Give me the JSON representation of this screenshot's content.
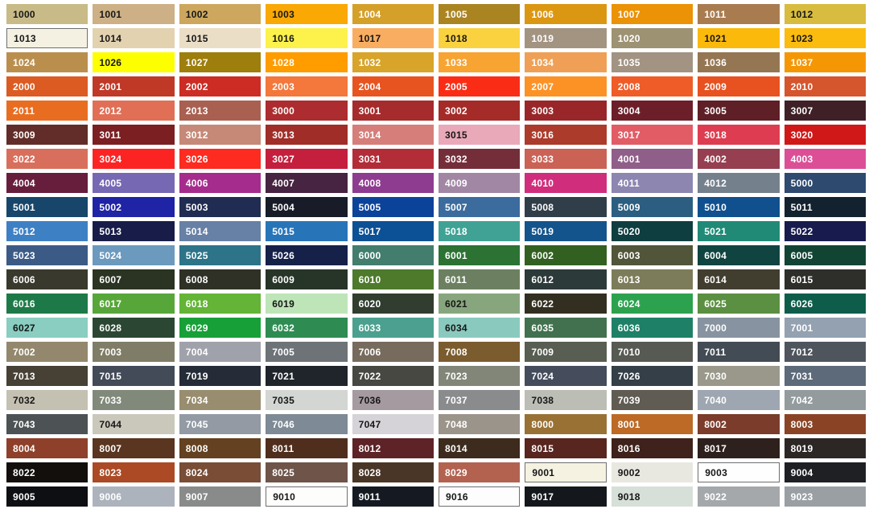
{
  "title": "RAL colour chart",
  "text_colors": {
    "b": "#161616",
    "w": "#ffffff"
  },
  "chart_data": {
    "type": "table",
    "title": "RAL classic colour chart",
    "columns": 10,
    "rows": 21,
    "legend_position": "none",
    "grid": "white gaps between swatches",
    "swatches": [
      {
        "code": "1000",
        "hex": "#C9BB88",
        "text": "b"
      },
      {
        "code": "1001",
        "hex": "#CDB086",
        "text": "b"
      },
      {
        "code": "1002",
        "hex": "#CDA75E",
        "text": "b"
      },
      {
        "code": "1003",
        "hex": "#F9A804",
        "text": "b"
      },
      {
        "code": "1004",
        "hex": "#D4A02A",
        "text": "w"
      },
      {
        "code": "1005",
        "hex": "#AB8422",
        "text": "w"
      },
      {
        "code": "1006",
        "hex": "#DC9712",
        "text": "w"
      },
      {
        "code": "1007",
        "hex": "#EB9206",
        "text": "w"
      },
      {
        "code": "1011",
        "hex": "#A97C50",
        "text": "w"
      },
      {
        "code": "1012",
        "hex": "#D8BC3F",
        "text": "b"
      },
      {
        "code": "1013",
        "hex": "#F5F1E2",
        "text": "b",
        "border": true
      },
      {
        "code": "1014",
        "hex": "#E2D2B0",
        "text": "b"
      },
      {
        "code": "1015",
        "hex": "#EBDEC6",
        "text": "b"
      },
      {
        "code": "1016",
        "hex": "#FCF24B",
        "text": "b"
      },
      {
        "code": "1017",
        "hex": "#F9AD61",
        "text": "b"
      },
      {
        "code": "1018",
        "hex": "#FAD240",
        "text": "b"
      },
      {
        "code": "1019",
        "hex": "#A39482",
        "text": "w"
      },
      {
        "code": "1020",
        "hex": "#9D9272",
        "text": "w"
      },
      {
        "code": "1021",
        "hex": "#FBBA0B",
        "text": "b"
      },
      {
        "code": "1023",
        "hex": "#FBBC0F",
        "text": "b"
      },
      {
        "code": "1024",
        "hex": "#BA8F4E",
        "text": "w"
      },
      {
        "code": "1026",
        "hex": "#FDFE00",
        "text": "b"
      },
      {
        "code": "1027",
        "hex": "#9E7E0C",
        "text": "w"
      },
      {
        "code": "1028",
        "hex": "#FE9C00",
        "text": "w"
      },
      {
        "code": "1032",
        "hex": "#D8A429",
        "text": "w"
      },
      {
        "code": "1033",
        "hex": "#F7A433",
        "text": "w"
      },
      {
        "code": "1034",
        "hex": "#EFA056",
        "text": "w"
      },
      {
        "code": "1035",
        "hex": "#A29383",
        "text": "w"
      },
      {
        "code": "1036",
        "hex": "#957653",
        "text": "w"
      },
      {
        "code": "1037",
        "hex": "#F59704",
        "text": "w"
      },
      {
        "code": "2000",
        "hex": "#DC5B22",
        "text": "w"
      },
      {
        "code": "2001",
        "hex": "#C03826",
        "text": "w"
      },
      {
        "code": "2002",
        "hex": "#CC2C24",
        "text": "w"
      },
      {
        "code": "2003",
        "hex": "#F4773B",
        "text": "w"
      },
      {
        "code": "2004",
        "hex": "#E75420",
        "text": "w"
      },
      {
        "code": "2005",
        "hex": "#FB2C16",
        "text": "w"
      },
      {
        "code": "2007",
        "hex": "#FC9226",
        "text": "w"
      },
      {
        "code": "2008",
        "hex": "#EF5C28",
        "text": "w"
      },
      {
        "code": "2009",
        "hex": "#E85120",
        "text": "w"
      },
      {
        "code": "2010",
        "hex": "#D5552C",
        "text": "w"
      },
      {
        "code": "2011",
        "hex": "#E96D20",
        "text": "w"
      },
      {
        "code": "2012",
        "hex": "#E06F56",
        "text": "w"
      },
      {
        "code": "2013",
        "hex": "#A96050",
        "text": "w"
      },
      {
        "code": "3000",
        "hex": "#AC2C2F",
        "text": "w"
      },
      {
        "code": "3001",
        "hex": "#A62B2C",
        "text": "w"
      },
      {
        "code": "3002",
        "hex": "#A42B28",
        "text": "w"
      },
      {
        "code": "3003",
        "hex": "#992729",
        "text": "w"
      },
      {
        "code": "3004",
        "hex": "#6D1F29",
        "text": "w"
      },
      {
        "code": "3005",
        "hex": "#5E1F26",
        "text": "w"
      },
      {
        "code": "3007",
        "hex": "#3F2026",
        "text": "w"
      },
      {
        "code": "3009",
        "hex": "#622D28",
        "text": "w"
      },
      {
        "code": "3011",
        "hex": "#7B1F22",
        "text": "w"
      },
      {
        "code": "3012",
        "hex": "#C68977",
        "text": "w"
      },
      {
        "code": "3013",
        "hex": "#A02D28",
        "text": "w"
      },
      {
        "code": "3014",
        "hex": "#D67E79",
        "text": "w"
      },
      {
        "code": "3015",
        "hex": "#E9A9B9",
        "text": "b"
      },
      {
        "code": "3016",
        "hex": "#AC3B2B",
        "text": "w"
      },
      {
        "code": "3017",
        "hex": "#E25C66",
        "text": "w"
      },
      {
        "code": "3018",
        "hex": "#DE3C50",
        "text": "w"
      },
      {
        "code": "3020",
        "hex": "#D01818",
        "text": "w"
      },
      {
        "code": "3022",
        "hex": "#D86F5C",
        "text": "w"
      },
      {
        "code": "3024",
        "hex": "#FC2423",
        "text": "w"
      },
      {
        "code": "3026",
        "hex": "#FD2B20",
        "text": "w"
      },
      {
        "code": "3027",
        "hex": "#C41F3D",
        "text": "w"
      },
      {
        "code": "3031",
        "hex": "#B22D38",
        "text": "w"
      },
      {
        "code": "3032",
        "hex": "#742E3A",
        "text": "w"
      },
      {
        "code": "3033",
        "hex": "#CA6256",
        "text": "w"
      },
      {
        "code": "4001",
        "hex": "#8F5E89",
        "text": "w"
      },
      {
        "code": "4002",
        "hex": "#953F50",
        "text": "w"
      },
      {
        "code": "4003",
        "hex": "#DC4F97",
        "text": "w"
      },
      {
        "code": "4004",
        "hex": "#671E3C",
        "text": "w"
      },
      {
        "code": "4005",
        "hex": "#7768B4",
        "text": "w"
      },
      {
        "code": "4006",
        "hex": "#A52C8D",
        "text": "w"
      },
      {
        "code": "4007",
        "hex": "#472441",
        "text": "w"
      },
      {
        "code": "4008",
        "hex": "#8E3C90",
        "text": "w"
      },
      {
        "code": "4009",
        "hex": "#A287A5",
        "text": "w"
      },
      {
        "code": "4010",
        "hex": "#D02E7C",
        "text": "w"
      },
      {
        "code": "4011",
        "hex": "#8C86B1",
        "text": "w"
      },
      {
        "code": "4012",
        "hex": "#75808D",
        "text": "w"
      },
      {
        "code": "5000",
        "hex": "#2E4A6F",
        "text": "w"
      },
      {
        "code": "5001",
        "hex": "#17466A",
        "text": "w"
      },
      {
        "code": "5002",
        "hex": "#1F23A5",
        "text": "w"
      },
      {
        "code": "5003",
        "hex": "#202C52",
        "text": "w"
      },
      {
        "code": "5004",
        "hex": "#171C28",
        "text": "w"
      },
      {
        "code": "5005",
        "hex": "#0C439A",
        "text": "w"
      },
      {
        "code": "5007",
        "hex": "#3C6C9E",
        "text": "w"
      },
      {
        "code": "5008",
        "hex": "#303E49",
        "text": "w"
      },
      {
        "code": "5009",
        "hex": "#2B5E80",
        "text": "w"
      },
      {
        "code": "5010",
        "hex": "#10508F",
        "text": "w"
      },
      {
        "code": "5011",
        "hex": "#13222F",
        "text": "w"
      },
      {
        "code": "5012",
        "hex": "#3E80C4",
        "text": "w"
      },
      {
        "code": "5013",
        "hex": "#171D48",
        "text": "w"
      },
      {
        "code": "5014",
        "hex": "#6780A5",
        "text": "w"
      },
      {
        "code": "5015",
        "hex": "#2874B8",
        "text": "w"
      },
      {
        "code": "5017",
        "hex": "#0C5095",
        "text": "w"
      },
      {
        "code": "5018",
        "hex": "#3FA295",
        "text": "w"
      },
      {
        "code": "5019",
        "hex": "#14548C",
        "text": "w"
      },
      {
        "code": "5020",
        "hex": "#0F3E40",
        "text": "w"
      },
      {
        "code": "5021",
        "hex": "#208A77",
        "text": "w"
      },
      {
        "code": "5022",
        "hex": "#181B4D",
        "text": "w"
      },
      {
        "code": "5023",
        "hex": "#3B5B86",
        "text": "w"
      },
      {
        "code": "5024",
        "hex": "#6C99BE",
        "text": "w"
      },
      {
        "code": "5025",
        "hex": "#2D7489",
        "text": "w"
      },
      {
        "code": "5026",
        "hex": "#16214A",
        "text": "w"
      },
      {
        "code": "6000",
        "hex": "#427D6E",
        "text": "w"
      },
      {
        "code": "6001",
        "hex": "#2B7233",
        "text": "w"
      },
      {
        "code": "6002",
        "hex": "#326020",
        "text": "w"
      },
      {
        "code": "6003",
        "hex": "#51553A",
        "text": "w"
      },
      {
        "code": "6004",
        "hex": "#104441",
        "text": "w"
      },
      {
        "code": "6005",
        "hex": "#124434",
        "text": "w"
      },
      {
        "code": "6006",
        "hex": "#3A392E",
        "text": "w"
      },
      {
        "code": "6007",
        "hex": "#2B3322",
        "text": "w"
      },
      {
        "code": "6008",
        "hex": "#2F3126",
        "text": "w"
      },
      {
        "code": "6009",
        "hex": "#273428",
        "text": "w"
      },
      {
        "code": "6010",
        "hex": "#4D7A2B",
        "text": "w"
      },
      {
        "code": "6011",
        "hex": "#6C8061",
        "text": "w"
      },
      {
        "code": "6012",
        "hex": "#2C3A39",
        "text": "w"
      },
      {
        "code": "6013",
        "hex": "#7D7C5A",
        "text": "w"
      },
      {
        "code": "6014",
        "hex": "#413E30",
        "text": "w"
      },
      {
        "code": "6015",
        "hex": "#2E2F2A",
        "text": "w"
      },
      {
        "code": "6016",
        "hex": "#1D7A48",
        "text": "w"
      },
      {
        "code": "6017",
        "hex": "#57A639",
        "text": "w"
      },
      {
        "code": "6018",
        "hex": "#63B437",
        "text": "w"
      },
      {
        "code": "6019",
        "hex": "#BEE5B8",
        "text": "b"
      },
      {
        "code": "6020",
        "hex": "#303D2F",
        "text": "w"
      },
      {
        "code": "6021",
        "hex": "#88A67E",
        "text": "b"
      },
      {
        "code": "6022",
        "hex": "#332F20",
        "text": "w"
      },
      {
        "code": "6024",
        "hex": "#2DA24E",
        "text": "w"
      },
      {
        "code": "6025",
        "hex": "#5B8F41",
        "text": "w"
      },
      {
        "code": "6026",
        "hex": "#0E5D4B",
        "text": "w"
      },
      {
        "code": "6027",
        "hex": "#89CEC1",
        "text": "b"
      },
      {
        "code": "6028",
        "hex": "#2B4733",
        "text": "w"
      },
      {
        "code": "6029",
        "hex": "#17A038",
        "text": "w"
      },
      {
        "code": "6032",
        "hex": "#2E8C52",
        "text": "w"
      },
      {
        "code": "6033",
        "hex": "#4BA08F",
        "text": "w"
      },
      {
        "code": "6034",
        "hex": "#8ACABE",
        "text": "b"
      },
      {
        "code": "6035",
        "hex": "#42714F",
        "text": "w"
      },
      {
        "code": "6036",
        "hex": "#1D8067",
        "text": "w"
      },
      {
        "code": "7000",
        "hex": "#8793A0",
        "text": "w"
      },
      {
        "code": "7001",
        "hex": "#93A1B1",
        "text": "w"
      },
      {
        "code": "7002",
        "hex": "#93886D",
        "text": "w"
      },
      {
        "code": "7003",
        "hex": "#7F7D67",
        "text": "w"
      },
      {
        "code": "7004",
        "hex": "#A0A2AB",
        "text": "w"
      },
      {
        "code": "7005",
        "hex": "#6D7377",
        "text": "w"
      },
      {
        "code": "7006",
        "hex": "#776B5E",
        "text": "w"
      },
      {
        "code": "7008",
        "hex": "#7B5C2F",
        "text": "w"
      },
      {
        "code": "7009",
        "hex": "#585E52",
        "text": "w"
      },
      {
        "code": "7010",
        "hex": "#565A53",
        "text": "w"
      },
      {
        "code": "7011",
        "hex": "#434B54",
        "text": "w"
      },
      {
        "code": "7012",
        "hex": "#4E555D",
        "text": "w"
      },
      {
        "code": "7013",
        "hex": "#464134",
        "text": "w"
      },
      {
        "code": "7015",
        "hex": "#434A58",
        "text": "w"
      },
      {
        "code": "7019",
        "hex": "#262C37",
        "text": "w"
      },
      {
        "code": "7021",
        "hex": "#20252B",
        "text": "w"
      },
      {
        "code": "7022",
        "hex": "#474842",
        "text": "w"
      },
      {
        "code": "7023",
        "hex": "#828679",
        "text": "w"
      },
      {
        "code": "7024",
        "hex": "#454C5C",
        "text": "w"
      },
      {
        "code": "7026",
        "hex": "#343F47",
        "text": "w"
      },
      {
        "code": "7030",
        "hex": "#99988B",
        "text": "w"
      },
      {
        "code": "7031",
        "hex": "#5C6A79",
        "text": "w"
      },
      {
        "code": "7032",
        "hex": "#C5C1B2",
        "text": "b"
      },
      {
        "code": "7033",
        "hex": "#81897B",
        "text": "w"
      },
      {
        "code": "7034",
        "hex": "#988D6F",
        "text": "w"
      },
      {
        "code": "7035",
        "hex": "#D3D6D2",
        "text": "b"
      },
      {
        "code": "7036",
        "hex": "#A49AA0",
        "text": "b"
      },
      {
        "code": "7037",
        "hex": "#898B8D",
        "text": "w"
      },
      {
        "code": "7038",
        "hex": "#BCBEB6",
        "text": "b"
      },
      {
        "code": "7039",
        "hex": "#605C54",
        "text": "w"
      },
      {
        "code": "7040",
        "hex": "#9EA6B1",
        "text": "w"
      },
      {
        "code": "7042",
        "hex": "#939B9D",
        "text": "w"
      },
      {
        "code": "7043",
        "hex": "#4D5254",
        "text": "w"
      },
      {
        "code": "7044",
        "hex": "#CAC8BB",
        "text": "b"
      },
      {
        "code": "7045",
        "hex": "#939AA4",
        "text": "w"
      },
      {
        "code": "7046",
        "hex": "#7E8A95",
        "text": "w"
      },
      {
        "code": "7047",
        "hex": "#D5D3D7",
        "text": "b"
      },
      {
        "code": "7048",
        "hex": "#9B948B",
        "text": "w"
      },
      {
        "code": "8000",
        "hex": "#9A7134",
        "text": "w"
      },
      {
        "code": "8001",
        "hex": "#BC6A26",
        "text": "w"
      },
      {
        "code": "8002",
        "hex": "#7B3C2B",
        "text": "w"
      },
      {
        "code": "8003",
        "hex": "#8A4425",
        "text": "w"
      },
      {
        "code": "8004",
        "hex": "#8E402B",
        "text": "w"
      },
      {
        "code": "8007",
        "hex": "#5A351F",
        "text": "w"
      },
      {
        "code": "8008",
        "hex": "#644120",
        "text": "w"
      },
      {
        "code": "8011",
        "hex": "#502E1D",
        "text": "w"
      },
      {
        "code": "8012",
        "hex": "#5E2326",
        "text": "w"
      },
      {
        "code": "8014",
        "hex": "#3D2B1E",
        "text": "w"
      },
      {
        "code": "8015",
        "hex": "#58251F",
        "text": "w"
      },
      {
        "code": "8016",
        "hex": "#3E221B",
        "text": "w"
      },
      {
        "code": "8017",
        "hex": "#2E201C",
        "text": "w"
      },
      {
        "code": "8019",
        "hex": "#2C2725",
        "text": "w"
      },
      {
        "code": "8022",
        "hex": "#120F0D",
        "text": "w"
      },
      {
        "code": "8023",
        "hex": "#AB4A24",
        "text": "w"
      },
      {
        "code": "8024",
        "hex": "#794D36",
        "text": "w"
      },
      {
        "code": "8025",
        "hex": "#6E5449",
        "text": "w"
      },
      {
        "code": "8028",
        "hex": "#4A3626",
        "text": "w"
      },
      {
        "code": "8029",
        "hex": "#B36250",
        "text": "w"
      },
      {
        "code": "9001",
        "hex": "#F6F2E2",
        "text": "b",
        "border": true
      },
      {
        "code": "9002",
        "hex": "#E9E8E0",
        "text": "b"
      },
      {
        "code": "9003",
        "hex": "#FEFEFE",
        "text": "b",
        "border": true
      },
      {
        "code": "9004",
        "hex": "#1E2024",
        "text": "w"
      },
      {
        "code": "9005",
        "hex": "#0E0F12",
        "text": "w"
      },
      {
        "code": "9006",
        "hex": "#ACB3BC",
        "text": "w"
      },
      {
        "code": "9007",
        "hex": "#888B8A",
        "text": "w"
      },
      {
        "code": "9010",
        "hex": "#FDFDFB",
        "text": "b",
        "border": true
      },
      {
        "code": "9011",
        "hex": "#151A22",
        "text": "w"
      },
      {
        "code": "9016",
        "hex": "#FDFDFD",
        "text": "b",
        "border": true
      },
      {
        "code": "9017",
        "hex": "#14171B",
        "text": "w"
      },
      {
        "code": "9018",
        "hex": "#D7DFD9",
        "text": "b"
      },
      {
        "code": "9022",
        "hex": "#A4A8AB",
        "text": "w"
      },
      {
        "code": "9023",
        "hex": "#999FA3",
        "text": "w"
      }
    ]
  }
}
